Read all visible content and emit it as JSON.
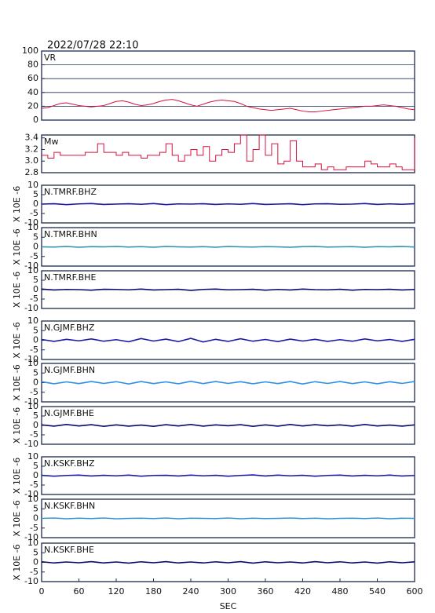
{
  "chart_data": [
    {
      "type": "line",
      "title": "2022/07/28 22:10",
      "grid": true,
      "xlim": [
        0,
        600
      ],
      "ylim": [
        0,
        100
      ],
      "yticks": [
        0,
        20,
        40,
        60,
        80,
        100
      ],
      "x": [
        0,
        10,
        20,
        30,
        40,
        50,
        60,
        70,
        80,
        90,
        100,
        110,
        120,
        130,
        140,
        150,
        160,
        170,
        180,
        190,
        200,
        210,
        220,
        230,
        240,
        250,
        260,
        270,
        280,
        290,
        300,
        310,
        320,
        330,
        340,
        350,
        360,
        370,
        380,
        390,
        400,
        410,
        420,
        430,
        440,
        450,
        460,
        470,
        480,
        490,
        500,
        510,
        520,
        530,
        540,
        550,
        560,
        570,
        580,
        590,
        600
      ],
      "series": [
        {
          "name": "VR",
          "color": "#d8103c",
          "values": [
            17,
            18,
            21,
            24,
            25,
            23,
            21,
            20,
            19,
            20,
            21,
            24,
            27,
            28,
            26,
            23,
            21,
            22,
            24,
            27,
            29,
            30,
            28,
            25,
            22,
            20,
            23,
            26,
            28,
            29,
            28,
            27,
            24,
            20,
            18,
            16,
            15,
            14,
            15,
            16,
            17,
            15,
            13,
            12,
            12,
            13,
            14,
            15,
            16,
            17,
            18,
            19,
            20,
            20,
            21,
            22,
            21,
            20,
            18,
            16,
            15
          ]
        }
      ]
    },
    {
      "type": "step",
      "xlim": [
        0,
        600
      ],
      "ylim": [
        2.8,
        3.45
      ],
      "yticks": [
        2.8,
        {
          "value": 3,
          "label": "3.0"
        },
        3.2,
        3.4
      ],
      "x": [
        0,
        10,
        20,
        30,
        40,
        50,
        60,
        70,
        80,
        90,
        100,
        110,
        120,
        130,
        140,
        150,
        160,
        170,
        180,
        190,
        200,
        210,
        220,
        230,
        240,
        250,
        260,
        270,
        280,
        290,
        300,
        310,
        320,
        330,
        340,
        350,
        360,
        370,
        380,
        390,
        400,
        410,
        420,
        430,
        440,
        450,
        460,
        470,
        480,
        490,
        500,
        510,
        520,
        530,
        540,
        550,
        560,
        570,
        580,
        590,
        600
      ],
      "series": [
        {
          "name": "Mw",
          "color": "#d8103c",
          "values": [
            3.1,
            3.05,
            3.15,
            3.1,
            3.1,
            3.1,
            3.1,
            3.15,
            3.15,
            3.3,
            3.15,
            3.15,
            3.1,
            3.15,
            3.1,
            3.1,
            3.05,
            3.1,
            3.1,
            3.15,
            3.3,
            3.1,
            3.0,
            3.1,
            3.2,
            3.1,
            3.25,
            3.0,
            3.1,
            3.2,
            3.15,
            3.3,
            3.45,
            3.0,
            3.2,
            3.45,
            3.1,
            3.3,
            2.95,
            3.0,
            3.35,
            3.0,
            2.9,
            2.9,
            2.95,
            2.85,
            2.9,
            2.85,
            2.85,
            2.9,
            2.9,
            2.9,
            3.0,
            2.95,
            2.9,
            2.9,
            2.95,
            2.9,
            2.85,
            2.85,
            3.4
          ]
        }
      ]
    },
    {
      "type": "line",
      "ylabel": "X 10E -6",
      "xlim": [
        0,
        600
      ],
      "ylim": [
        -10,
        10
      ],
      "yticks": [
        -10,
        -5,
        0,
        5,
        10
      ],
      "x": [
        0,
        20,
        40,
        60,
        80,
        100,
        120,
        140,
        160,
        180,
        200,
        220,
        240,
        260,
        280,
        300,
        320,
        340,
        360,
        380,
        400,
        420,
        440,
        460,
        480,
        500,
        520,
        540,
        560,
        580,
        600
      ],
      "series": [
        {
          "name": "N.TMRF.BHZ",
          "color": "#1a1aa8",
          "values": [
            0,
            0.2,
            -0.3,
            0.1,
            0.3,
            -0.2,
            0,
            0.2,
            -0.1,
            0.3,
            -0.3,
            0.1,
            0,
            0.2,
            -0.2,
            0.1,
            -0.1,
            0.3,
            -0.2,
            0,
            0.2,
            -0.3,
            0.1,
            0.2,
            -0.1,
            0,
            0.3,
            -0.2,
            0.1,
            -0.1,
            0.2
          ]
        }
      ]
    },
    {
      "type": "line",
      "ylabel": "X 10E -6",
      "xlim": [
        0,
        600
      ],
      "ylim": [
        -10,
        10
      ],
      "yticks": [
        -10,
        -5,
        0,
        5,
        10
      ],
      "x": [
        0,
        20,
        40,
        60,
        80,
        100,
        120,
        140,
        160,
        180,
        200,
        220,
        240,
        260,
        280,
        300,
        320,
        340,
        360,
        380,
        400,
        420,
        440,
        460,
        480,
        500,
        520,
        540,
        560,
        580,
        600
      ],
      "series": [
        {
          "name": "N.TMRF.BHN",
          "color": "#2a8fb0",
          "values": [
            0,
            -0.1,
            0.2,
            -0.2,
            0.1,
            0,
            0.2,
            -0.1,
            0.1,
            -0.2,
            0.2,
            0,
            -0.1,
            0.1,
            -0.2,
            0.2,
            0,
            -0.1,
            0.1,
            0,
            -0.2,
            0.1,
            0.2,
            -0.1,
            0,
            0.1,
            -0.2,
            0.1,
            0,
            0.2,
            -0.1
          ]
        }
      ]
    },
    {
      "type": "line",
      "ylabel": "X 10E -6",
      "xlim": [
        0,
        600
      ],
      "ylim": [
        -10,
        10
      ],
      "yticks": [
        -10,
        -5,
        0,
        5,
        10
      ],
      "x": [
        0,
        20,
        40,
        60,
        80,
        100,
        120,
        140,
        160,
        180,
        200,
        220,
        240,
        260,
        280,
        300,
        320,
        340,
        360,
        380,
        400,
        420,
        440,
        460,
        480,
        500,
        520,
        540,
        560,
        580,
        600
      ],
      "series": [
        {
          "name": "N.TMRF.BHE",
          "color": "#0a0a6e",
          "values": [
            0.3,
            -0.2,
            0.1,
            0,
            -0.3,
            0.2,
            0.1,
            -0.1,
            0.3,
            -0.2,
            0,
            0.2,
            -0.4,
            0.1,
            0.3,
            -0.1,
            0,
            0.2,
            -0.3,
            0.1,
            -0.2,
            0.3,
            0,
            -0.1,
            0.2,
            -0.3,
            0.1,
            0,
            0.2,
            -0.2,
            0.1
          ]
        }
      ]
    },
    {
      "type": "line",
      "ylabel": "X 10E -6",
      "xlim": [
        0,
        600
      ],
      "ylim": [
        -10,
        10
      ],
      "yticks": [
        -10,
        -5,
        0,
        5,
        10
      ],
      "x": [
        0,
        20,
        40,
        60,
        80,
        100,
        120,
        140,
        160,
        180,
        200,
        220,
        240,
        260,
        280,
        300,
        320,
        340,
        360,
        380,
        400,
        420,
        440,
        460,
        480,
        500,
        520,
        540,
        560,
        580,
        600
      ],
      "series": [
        {
          "name": "N.GJMF.BHZ",
          "color": "#1a1aa8",
          "values": [
            0.4,
            -0.6,
            0.5,
            -0.3,
            0.7,
            -0.5,
            0.3,
            -0.8,
            0.9,
            -0.4,
            0.6,
            -0.7,
            1.0,
            -0.9,
            0.5,
            -0.6,
            0.8,
            -0.5,
            0.4,
            -0.7,
            0.6,
            -0.4,
            0.5,
            -0.6,
            0.3,
            -0.5,
            0.7,
            -0.3,
            0.4,
            -0.6,
            0.5
          ]
        }
      ]
    },
    {
      "type": "line",
      "ylabel": "X 10E -6",
      "xlim": [
        0,
        600
      ],
      "ylim": [
        -10,
        10
      ],
      "yticks": [
        -10,
        -5,
        0,
        5,
        10
      ],
      "x": [
        0,
        20,
        40,
        60,
        80,
        100,
        120,
        140,
        160,
        180,
        200,
        220,
        240,
        260,
        280,
        300,
        320,
        340,
        360,
        380,
        400,
        420,
        440,
        460,
        480,
        500,
        520,
        540,
        560,
        580,
        600
      ],
      "series": [
        {
          "name": "N.GJMF.BHN",
          "color": "#2f8fe8",
          "values": [
            0.5,
            -0.6,
            0.4,
            -0.5,
            0.6,
            -0.4,
            0.5,
            -0.7,
            0.6,
            -0.5,
            0.4,
            -0.6,
            0.7,
            -0.5,
            0.6,
            -0.4,
            0.5,
            -0.6,
            0.4,
            -0.5,
            0.6,
            -0.7,
            0.5,
            -0.4,
            0.6,
            -0.5,
            0.4,
            -0.6,
            0.5,
            -0.4,
            0.6
          ]
        }
      ]
    },
    {
      "type": "line",
      "ylabel": "X 10E -6",
      "xlim": [
        0,
        600
      ],
      "ylim": [
        -10,
        10
      ],
      "yticks": [
        -10,
        -5,
        0,
        5,
        10
      ],
      "x": [
        0,
        20,
        40,
        60,
        80,
        100,
        120,
        140,
        160,
        180,
        200,
        220,
        240,
        260,
        280,
        300,
        320,
        340,
        360,
        380,
        400,
        420,
        440,
        460,
        480,
        500,
        520,
        540,
        560,
        580,
        600
      ],
      "series": [
        {
          "name": "N.GJMF.BHE",
          "color": "#0a0a6e",
          "values": [
            0.3,
            -0.4,
            0.5,
            -0.3,
            0.4,
            -0.5,
            0.3,
            -0.4,
            0.2,
            -0.5,
            0.4,
            -0.3,
            0.5,
            -0.4,
            0.3,
            -0.2,
            0.4,
            -0.5,
            0.3,
            -0.4,
            0.5,
            -0.3,
            0.4,
            -0.2,
            0.3,
            -0.4,
            0.5,
            -0.3,
            0.2,
            -0.4,
            0.3
          ]
        }
      ]
    },
    {
      "type": "line",
      "ylabel": "X 10E -6",
      "xlim": [
        0,
        600
      ],
      "ylim": [
        -10,
        10
      ],
      "yticks": [
        -10,
        -5,
        0,
        5,
        10
      ],
      "x": [
        0,
        20,
        40,
        60,
        80,
        100,
        120,
        140,
        160,
        180,
        200,
        220,
        240,
        260,
        280,
        300,
        320,
        340,
        360,
        380,
        400,
        420,
        440,
        460,
        480,
        500,
        520,
        540,
        560,
        580,
        600
      ],
      "series": [
        {
          "name": "N.KSKF.BHZ",
          "color": "#1a1aa8",
          "values": [
            0.2,
            -0.3,
            0.1,
            0.3,
            -0.2,
            0.2,
            -0.1,
            0.3,
            -0.3,
            0.1,
            0.2,
            -0.2,
            0.3,
            -0.1,
            0.2,
            -0.3,
            0.1,
            0.4,
            -0.2,
            0.3,
            -0.1,
            0.2,
            -0.3,
            0.1,
            0.3,
            -0.2,
            0.2,
            -0.1,
            0.3,
            -0.2,
            0.1
          ]
        }
      ]
    },
    {
      "type": "line",
      "ylabel": "X 10E -6",
      "xlim": [
        0,
        600
      ],
      "ylim": [
        -10,
        10
      ],
      "yticks": [
        -10,
        -5,
        0,
        5,
        10
      ],
      "x": [
        0,
        20,
        40,
        60,
        80,
        100,
        120,
        140,
        160,
        180,
        200,
        220,
        240,
        260,
        280,
        300,
        320,
        340,
        360,
        380,
        400,
        420,
        440,
        460,
        480,
        500,
        520,
        540,
        560,
        580,
        600
      ],
      "series": [
        {
          "name": "N.KSKF.BHN",
          "color": "#3a9ad8",
          "values": [
            0,
            0.2,
            -0.2,
            0.1,
            -0.1,
            0.2,
            -0.2,
            0,
            0.1,
            -0.1,
            0.2,
            -0.2,
            0.1,
            0,
            -0.1,
            0.2,
            -0.2,
            0.1,
            -0.1,
            0,
            0.2,
            -0.1,
            0.1,
            -0.2,
            0,
            0.1,
            -0.1,
            0.2,
            -0.2,
            0.1,
            0
          ]
        }
      ]
    },
    {
      "type": "line",
      "ylabel": "X 10E -6",
      "xlabel": "SEC",
      "xlim": [
        0,
        600
      ],
      "xticks": [
        0,
        60,
        120,
        180,
        240,
        300,
        360,
        420,
        480,
        540,
        600
      ],
      "ylim": [
        -10,
        10
      ],
      "yticks": [
        -10,
        -5,
        0,
        5,
        10
      ],
      "x": [
        0,
        20,
        40,
        60,
        80,
        100,
        120,
        140,
        160,
        180,
        200,
        220,
        240,
        260,
        280,
        300,
        320,
        340,
        360,
        380,
        400,
        420,
        440,
        460,
        480,
        500,
        520,
        540,
        560,
        580,
        600
      ],
      "series": [
        {
          "name": "N.KSKF.BHE",
          "color": "#0a0a6e",
          "values": [
            0.3,
            -0.3,
            0.2,
            -0.2,
            0.4,
            -0.3,
            0.2,
            -0.4,
            0.3,
            -0.2,
            0.4,
            -0.3,
            0.2,
            -0.3,
            0.3,
            -0.2,
            0.4,
            -0.4,
            0.3,
            -0.2,
            0.2,
            -0.3,
            0.4,
            -0.2,
            0.3,
            -0.3,
            0.2,
            -0.4,
            0.3,
            -0.2,
            0.3
          ]
        }
      ]
    }
  ]
}
